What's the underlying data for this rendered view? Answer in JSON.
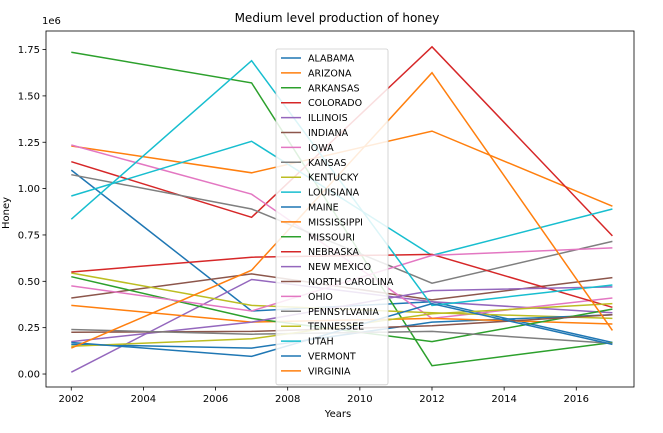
{
  "chart_data": {
    "type": "line",
    "title": "Medium level production of honey",
    "xlabel": "Years",
    "ylabel": "Honey",
    "y_offset_text": "1e6",
    "xlim": [
      2001.3,
      2017.6
    ],
    "ylim": [
      -70000,
      1850000
    ],
    "xticks": [
      2002,
      2004,
      2006,
      2008,
      2010,
      2012,
      2014,
      2016
    ],
    "yticks": [
      0,
      250000,
      500000,
      750000,
      1000000,
      1250000,
      1500000,
      1750000
    ],
    "ytick_labels": [
      "0.00",
      "0.25",
      "0.50",
      "0.75",
      "1.00",
      "1.25",
      "1.50",
      "1.75"
    ],
    "x": [
      2002,
      2007,
      2012,
      2017
    ],
    "legend_position": "center",
    "series": [
      {
        "name": "ALABAMA",
        "color": "#1f77b4",
        "values": [
          1100000,
          340000,
          390000,
          170000
        ]
      },
      {
        "name": "ARIZONA",
        "color": "#ff7f0e",
        "values": [
          1230000,
          1085000,
          1310000,
          905000
        ]
      },
      {
        "name": "ARKANSAS",
        "color": "#2ca02c",
        "values": [
          1735000,
          1570000,
          45000,
          170000
        ]
      },
      {
        "name": "COLORADO",
        "color": "#d62728",
        "values": [
          1145000,
          845000,
          1765000,
          745000
        ]
      },
      {
        "name": "ILLINOIS",
        "color": "#9467bd",
        "values": [
          10000,
          510000,
          390000,
          330000
        ]
      },
      {
        "name": "INDIANA",
        "color": "#8c564b",
        "values": [
          410000,
          540000,
          400000,
          520000
        ]
      },
      {
        "name": "IOWA",
        "color": "#e377c2",
        "values": [
          1235000,
          970000,
          300000,
          410000
        ]
      },
      {
        "name": "KANSAS",
        "color": "#7f7f7f",
        "values": [
          1075000,
          890000,
          490000,
          715000
        ]
      },
      {
        "name": "KENTUCKY",
        "color": "#bcbd22",
        "values": [
          545000,
          370000,
          330000,
          300000
        ]
      },
      {
        "name": "LOUISIANA",
        "color": "#17becf",
        "values": [
          960000,
          1255000,
          640000,
          890000
        ]
      },
      {
        "name": "MAINE",
        "color": "#1f77b4",
        "values": [
          160000,
          140000,
          280000,
          320000
        ]
      },
      {
        "name": "MISSISSIPPI",
        "color": "#ff7f0e",
        "values": [
          370000,
          280000,
          300000,
          270000
        ]
      },
      {
        "name": "MISSOURI",
        "color": "#2ca02c",
        "values": [
          525000,
          300000,
          175000,
          350000
        ]
      },
      {
        "name": "NEBRASKA",
        "color": "#d62728",
        "values": [
          550000,
          630000,
          645000,
          360000
        ]
      },
      {
        "name": "NEW MEXICO",
        "color": "#9467bd",
        "values": [
          175000,
          280000,
          450000,
          470000
        ]
      },
      {
        "name": "NORTH CAROLINA",
        "color": "#8c564b",
        "values": [
          225000,
          230000,
          260000,
          320000
        ]
      },
      {
        "name": "OHIO",
        "color": "#e377c2",
        "values": [
          475000,
          340000,
          640000,
          680000
        ]
      },
      {
        "name": "PENNSYLVANIA",
        "color": "#7f7f7f",
        "values": [
          240000,
          215000,
          230000,
          165000
        ]
      },
      {
        "name": "TENNESSEE",
        "color": "#bcbd22",
        "values": [
          150000,
          190000,
          325000,
          380000
        ]
      },
      {
        "name": "UTAH",
        "color": "#17becf",
        "values": [
          835000,
          1690000,
          370000,
          480000
        ]
      },
      {
        "name": "VERMONT",
        "color": "#1f77b4",
        "values": [
          170000,
          95000,
          380000,
          160000
        ]
      },
      {
        "name": "VIRGINIA",
        "color": "#ff7f0e",
        "values": [
          140000,
          560000,
          1625000,
          235000
        ]
      }
    ]
  }
}
